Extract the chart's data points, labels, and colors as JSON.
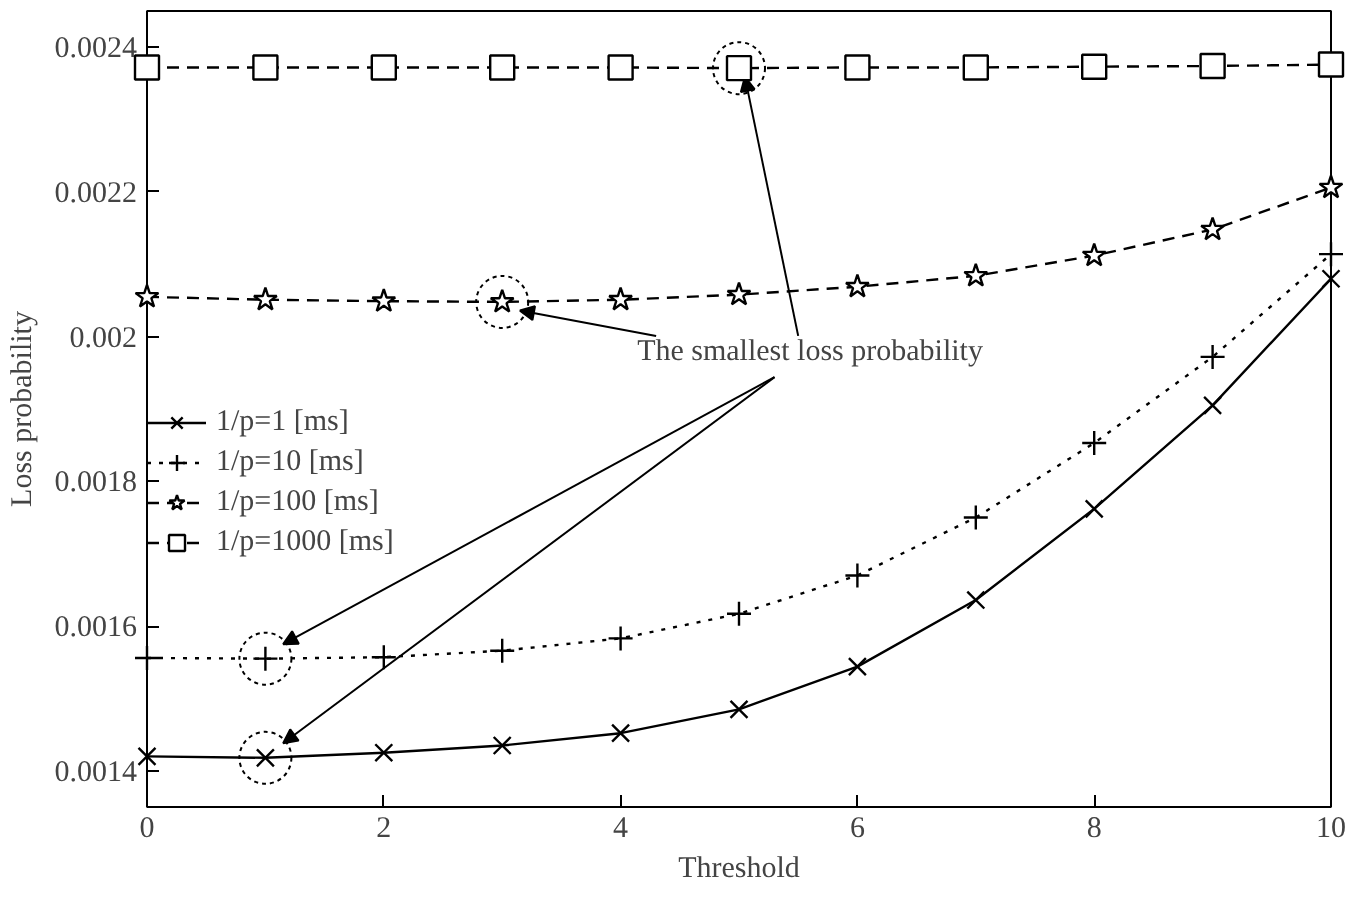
{
  "chart_data": {
    "type": "line",
    "xlabel": "Threshold",
    "ylabel": "Loss probability",
    "x": [
      0,
      1,
      2,
      3,
      4,
      5,
      6,
      7,
      8,
      9,
      10
    ],
    "xlim": [
      0,
      10
    ],
    "xticks": [
      0,
      2,
      4,
      6,
      8,
      10
    ],
    "ylim": [
      0.00135,
      0.00245
    ],
    "yticks": [
      0.0014,
      0.0016,
      0.0018,
      0.002,
      0.0022,
      0.0024
    ],
    "grid": false,
    "legend": "left",
    "series": [
      {
        "name": "1/p=1 [ms]",
        "color": "#000000",
        "marker": "x",
        "line_style": "solid",
        "values": [
          0.00142,
          0.001418,
          0.001425,
          0.001435,
          0.001452,
          0.001485,
          0.001544,
          0.001636,
          0.001762,
          0.001905,
          0.00208
        ]
      },
      {
        "name": "1/p=10 [ms]",
        "color": "#000000",
        "marker": "cross",
        "line_style": "dotted",
        "values": [
          0.001556,
          0.001555,
          0.001557,
          0.001566,
          0.001583,
          0.001617,
          0.00167,
          0.00175,
          0.001853,
          0.001972,
          0.002114
        ]
      },
      {
        "name": "1/p=100 [ms]",
        "color": "#000000",
        "marker": "star",
        "line_style": "dashed",
        "values": [
          0.002055,
          0.002051,
          0.002049,
          0.002048,
          0.002051,
          0.002058,
          0.002069,
          0.002084,
          0.002112,
          0.002148,
          0.002206
        ]
      },
      {
        "name": "1/p=1000 [ms]",
        "color": "#000000",
        "marker": "square",
        "line_style": "dashed",
        "values": [
          0.002372,
          0.002372,
          0.002372,
          0.002372,
          0.002372,
          0.002371,
          0.002372,
          0.002372,
          0.002373,
          0.002374,
          0.002376
        ]
      }
    ],
    "annotations": [
      {
        "text": "The smallest loss probability",
        "x": 5,
        "y": 0.002371
      }
    ]
  }
}
